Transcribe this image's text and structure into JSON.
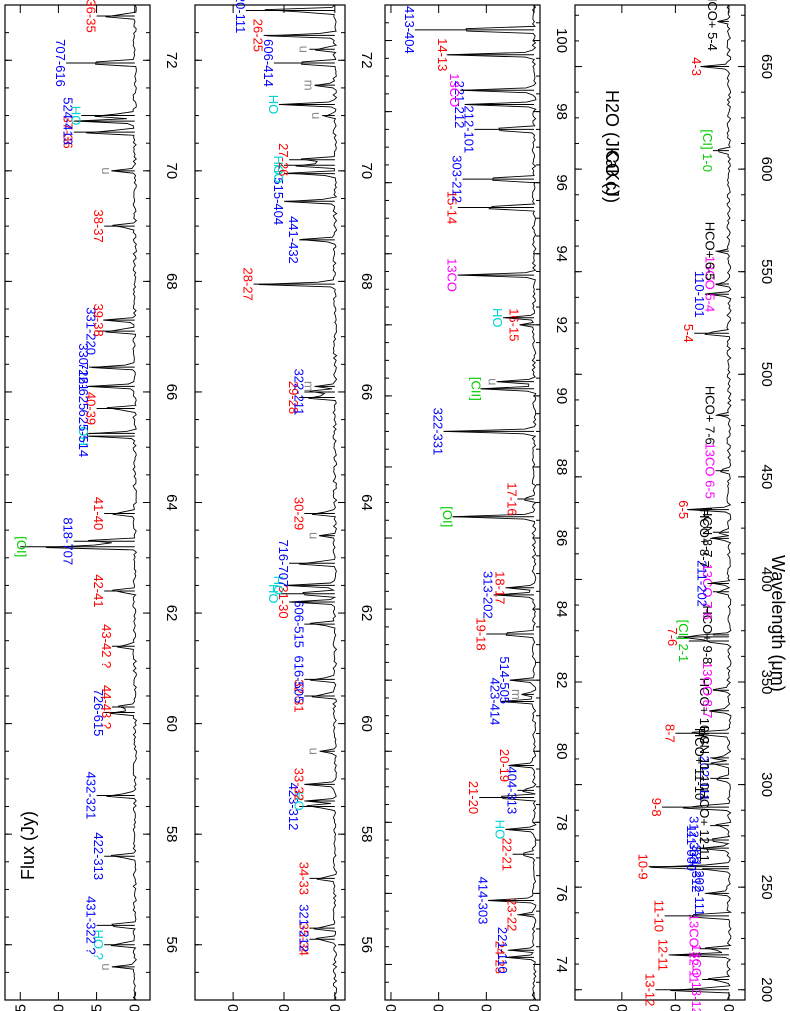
{
  "colors": {
    "CO": "#ff0000",
    "H2O": "#0000ff",
    "OH": "#00d4d4",
    "13CO": "#ff00ff",
    "CI": "#00cc00",
    "HCO": "#000000",
    "u": "#888888"
  },
  "axis_titles": {
    "flux": "Flux (Jy)",
    "wavelength": "Wavelength (μm)",
    "legend_co": "CO (J)",
    "legend_h2o": "H2O (JKaKc)"
  },
  "chart_data": [
    {
      "type": "line",
      "panel": 1,
      "xlim": [
        55,
        73
      ],
      "ylim": [
        -2,
        17
      ],
      "yticks": [
        0,
        5,
        10,
        15
      ],
      "xticks": [
        56,
        58,
        60,
        62,
        64,
        66,
        68,
        70,
        72
      ],
      "lines": [
        {
          "x": 55.6,
          "h": 3,
          "label": "u",
          "cls": "u"
        },
        {
          "x": 56.0,
          "h": 4,
          "label": "HO ?",
          "cls": "OH"
        },
        {
          "x": 56.35,
          "h": 5,
          "label": "431-322 ?",
          "cls": "H2O"
        },
        {
          "x": 57.6,
          "h": 4,
          "label": "422-313",
          "cls": "H2O"
        },
        {
          "x": 58.7,
          "h": 5,
          "label": "432-321",
          "cls": "H2O"
        },
        {
          "x": 60.2,
          "h": 4,
          "label": "726-615",
          "cls": "H2O"
        },
        {
          "x": 60.3,
          "h": 3,
          "label": "44-43 ?",
          "cls": "CO"
        },
        {
          "x": 61.4,
          "h": 3,
          "label": "43-42 ?",
          "cls": "CO"
        },
        {
          "x": 62.4,
          "h": 4,
          "label": "42-41",
          "cls": "CO"
        },
        {
          "x": 63.2,
          "h": 15,
          "label": "[OI]",
          "cls": "CI"
        },
        {
          "x": 63.3,
          "h": 8,
          "label": "818-707",
          "cls": "H2O"
        },
        {
          "x": 63.8,
          "h": 4,
          "label": "41-40",
          "cls": "CO"
        },
        {
          "x": 65.2,
          "h": 6,
          "label": "OH",
          "cls": "OH"
        },
        {
          "x": 65.25,
          "h": 6,
          "label": "625-514",
          "cls": "H2O"
        },
        {
          "x": 65.7,
          "h": 5,
          "label": "40-39",
          "cls": "CO"
        },
        {
          "x": 66.1,
          "h": 6,
          "label": "716-625",
          "cls": "H2O"
        },
        {
          "x": 66.45,
          "h": 6,
          "label": "330-221",
          "cls": "H2O"
        },
        {
          "x": 67.1,
          "h": 5,
          "label": "331-220",
          "cls": "H2O"
        },
        {
          "x": 67.3,
          "h": 4,
          "label": "39-38",
          "cls": "CO"
        },
        {
          "x": 69.0,
          "h": 4,
          "label": "38-37",
          "cls": "CO"
        },
        {
          "x": 70.0,
          "h": 3,
          "label": "u",
          "cls": "u"
        },
        {
          "x": 70.7,
          "h": 8,
          "label": "37-36",
          "cls": "CO"
        },
        {
          "x": 70.9,
          "h": 8,
          "label": "524-413",
          "cls": "H2O"
        },
        {
          "x": 71.0,
          "h": 7,
          "label": "HO",
          "cls": "OH"
        },
        {
          "x": 71.95,
          "h": 9,
          "label": "707-616",
          "cls": "H2O"
        },
        {
          "x": 72.8,
          "h": 5,
          "label": "36-35",
          "cls": "CO"
        }
      ]
    },
    {
      "type": "line",
      "panel": 2,
      "xlim": [
        55,
        73
      ],
      "ylim": [
        -4,
        55
      ],
      "yticks": [
        0,
        20,
        40
      ],
      "xticks": [
        56,
        58,
        60,
        62,
        64,
        66,
        68,
        70,
        72
      ],
      "lines": [
        {
          "x": 56.1,
          "h": 10,
          "label": "35-34",
          "cls": "CO"
        },
        {
          "x": 56.3,
          "h": 10,
          "label": "321-212",
          "cls": "H2O"
        },
        {
          "x": 57.2,
          "h": 10,
          "label": "34-33",
          "cls": "CO"
        },
        {
          "x": 58.5,
          "h": 14,
          "label": "423-312",
          "cls": "H2O"
        },
        {
          "x": 58.6,
          "h": 12,
          "label": "HO",
          "cls": "OH"
        },
        {
          "x": 58.9,
          "h": 12,
          "label": "33-32",
          "cls": "CO"
        },
        {
          "x": 59.5,
          "h": 6,
          "label": "u",
          "cls": "u"
        },
        {
          "x": 60.5,
          "h": 12,
          "label": "32-31",
          "cls": "CO"
        },
        {
          "x": 60.8,
          "h": 12,
          "label": "616-505",
          "cls": "H2O"
        },
        {
          "x": 61.8,
          "h": 12,
          "label": "606-515",
          "cls": "H2O"
        },
        {
          "x": 62.2,
          "h": 18,
          "label": "31-30",
          "cls": "CO"
        },
        {
          "x": 62.35,
          "h": 22,
          "label": "HO",
          "cls": "OH"
        },
        {
          "x": 62.5,
          "h": 20,
          "label": "HO",
          "cls": "OH"
        },
        {
          "x": 62.9,
          "h": 18,
          "label": "716-707",
          "cls": "H2O"
        },
        {
          "x": 63.4,
          "h": 6,
          "label": "u",
          "cls": "u"
        },
        {
          "x": 63.8,
          "h": 12,
          "label": "30-29",
          "cls": "CO"
        },
        {
          "x": 65.9,
          "h": 14,
          "label": "29-28",
          "cls": "CO"
        },
        {
          "x": 66.0,
          "h": 12,
          "label": "322-211",
          "cls": "H2O"
        },
        {
          "x": 66.1,
          "h": 8,
          "label": "m",
          "cls": "u"
        },
        {
          "x": 67.95,
          "h": 32,
          "label": "28-27",
          "cls": "CO"
        },
        {
          "x": 68.75,
          "h": 14,
          "label": "441-432",
          "cls": "H2O"
        },
        {
          "x": 69.45,
          "h": 20,
          "label": "515-404",
          "cls": "H2O"
        },
        {
          "x": 69.95,
          "h": 20,
          "label": "HO",
          "cls": "OH"
        },
        {
          "x": 70.1,
          "h": 20,
          "label": "HO",
          "cls": "OH"
        },
        {
          "x": 70.2,
          "h": 18,
          "label": "27-26",
          "cls": "CO"
        },
        {
          "x": 71.0,
          "h": 5,
          "label": "u",
          "cls": "u"
        },
        {
          "x": 71.2,
          "h": 22,
          "label": "HO",
          "cls": "OH"
        },
        {
          "x": 71.55,
          "h": 8,
          "label": "m",
          "cls": "u"
        },
        {
          "x": 71.95,
          "h": 24,
          "label": "606-414",
          "cls": "H2O"
        },
        {
          "x": 72.2,
          "h": 10,
          "label": "u",
          "cls": "u"
        },
        {
          "x": 72.45,
          "h": 28,
          "label": "26-25",
          "cls": "CO"
        },
        {
          "x": 72.9,
          "h": 35,
          "label": "220-111",
          "cls": "H2O"
        }
      ]
    },
    {
      "type": "line",
      "panel": 3,
      "xlim": [
        73,
        101
      ],
      "ylim": [
        -5,
        125
      ],
      "yticks": [
        0,
        40,
        80,
        120
      ],
      "xticks": [
        74,
        76,
        78,
        80,
        82,
        84,
        86,
        88,
        90,
        92,
        94,
        96,
        98,
        100
      ],
      "lines": [
        {
          "x": 74.2,
          "h": 24,
          "label": "24-23",
          "cls": "CO"
        },
        {
          "x": 74.4,
          "h": 22,
          "label": "221-110",
          "cls": "H2O"
        },
        {
          "x": 75.4,
          "h": 14,
          "label": "23-22",
          "cls": "CO"
        },
        {
          "x": 75.8,
          "h": 38,
          "label": "414-303",
          "cls": "H2O"
        },
        {
          "x": 77.1,
          "h": 18,
          "label": "22-21",
          "cls": "CO"
        },
        {
          "x": 77.8,
          "h": 24,
          "label": "HO",
          "cls": "OH"
        },
        {
          "x": 78.7,
          "h": 46,
          "label": "21-20",
          "cls": "CO"
        },
        {
          "x": 78.9,
          "h": 14,
          "label": "404-313",
          "cls": "H2O"
        },
        {
          "x": 79.6,
          "h": 20,
          "label": "20-19",
          "cls": "CO"
        },
        {
          "x": 81.4,
          "h": 28,
          "label": "423-414",
          "cls": "H2O"
        },
        {
          "x": 81.6,
          "h": 10,
          "label": "m",
          "cls": "u"
        },
        {
          "x": 82.0,
          "h": 20,
          "label": "514-505",
          "cls": "H2O"
        },
        {
          "x": 83.3,
          "h": 40,
          "label": "19-18",
          "cls": "CO"
        },
        {
          "x": 84.4,
          "h": 34,
          "label": "313-202",
          "cls": "H2O"
        },
        {
          "x": 84.6,
          "h": 24,
          "label": "18-17",
          "cls": "CO"
        },
        {
          "x": 86.6,
          "h": 68,
          "label": "[OI]",
          "cls": "CI"
        },
        {
          "x": 87.1,
          "h": 14,
          "label": "17-16",
          "cls": "CO"
        },
        {
          "x": 89.0,
          "h": 76,
          "label": "322-331",
          "cls": "H2O"
        },
        {
          "x": 90.2,
          "h": 44,
          "label": "[CII]",
          "cls": "CI"
        },
        {
          "x": 90.4,
          "h": 30,
          "label": "u",
          "cls": "u"
        },
        {
          "x": 92.0,
          "h": 12,
          "label": "16-15",
          "cls": "CO"
        },
        {
          "x": 92.2,
          "h": 26,
          "label": "HO",
          "cls": "OH"
        },
        {
          "x": 93.4,
          "h": 64,
          "label": "13CO",
          "cls": "13CO"
        },
        {
          "x": 95.3,
          "h": 64,
          "label": "15-14",
          "cls": "CO"
        },
        {
          "x": 96.1,
          "h": 60,
          "label": "303-212",
          "cls": "H2O"
        },
        {
          "x": 97.5,
          "h": 50,
          "label": "212-101",
          "cls": "H2O"
        },
        {
          "x": 98.2,
          "h": 58,
          "label": "221-212",
          "cls": "H2O"
        },
        {
          "x": 98.6,
          "h": 62,
          "label": "13CO",
          "cls": "13CO"
        },
        {
          "x": 99.6,
          "h": 72,
          "label": "14-13",
          "cls": "CO"
        },
        {
          "x": 100.3,
          "h": 100,
          "label": "413-404",
          "cls": "H2O"
        }
      ]
    },
    {
      "type": "line",
      "panel": 4,
      "xlim": [
        195,
        680
      ],
      "ylim": [
        -12,
        115
      ],
      "yticks": [
        0,
        40,
        80
      ],
      "xticks": [
        200,
        250,
        300,
        350,
        400,
        450,
        500,
        550,
        600,
        650
      ],
      "lines": [
        {
          "x": 200,
          "h": 55,
          "label": "13-12",
          "cls": "CO"
        },
        {
          "x": 205,
          "h": 20,
          "label": "13CO 13-12",
          "cls": "13CO"
        },
        {
          "x": 217,
          "h": 45,
          "label": "12-11",
          "cls": "CO"
        },
        {
          "x": 220,
          "h": 22,
          "label": "13CO 12-11",
          "cls": "13CO"
        },
        {
          "x": 236,
          "h": 48,
          "label": "11-10",
          "cls": "CO"
        },
        {
          "x": 247,
          "h": 18,
          "label": "202-111",
          "cls": "H2O"
        },
        {
          "x": 259,
          "h": 20,
          "label": "321-312",
          "cls": "H2O"
        },
        {
          "x": 260,
          "h": 60,
          "label": "10-9",
          "cls": "CO"
        },
        {
          "x": 269,
          "h": 24,
          "label": "111-000",
          "cls": "H2O"
        },
        {
          "x": 273,
          "h": 22,
          "label": "312-303",
          "cls": "H2O"
        },
        {
          "x": 280,
          "h": 14,
          "label": "HCO+ 12-11",
          "cls": "HCO"
        },
        {
          "x": 289,
          "h": 50,
          "label": "9-8",
          "cls": "CO"
        },
        {
          "x": 303,
          "h": 14,
          "label": "202-111",
          "cls": "H2O"
        },
        {
          "x": 310,
          "h": 18,
          "label": "HCO+ 11-10",
          "cls": "HCO"
        },
        {
          "x": 313,
          "h": 14,
          "label": "HCN 11-10",
          "cls": "HCO"
        },
        {
          "x": 325,
          "h": 40,
          "label": "8-7",
          "cls": "CO"
        },
        {
          "x": 336,
          "h": 14,
          "label": "HCO+ 10-9",
          "cls": "HCO"
        },
        {
          "x": 346,
          "h": 12,
          "label": "13CO 8-7",
          "cls": "13CO"
        },
        {
          "x": 370,
          "h": 30,
          "label": "[CI] 2-1",
          "cls": "CI"
        },
        {
          "x": 372,
          "h": 38,
          "label": "7-6",
          "cls": "CO"
        },
        {
          "x": 373,
          "h": 12,
          "label": "HCO+ 9-8",
          "cls": "HCO"
        },
        {
          "x": 394,
          "h": 12,
          "label": "13CO 7-6",
          "cls": "13CO"
        },
        {
          "x": 398,
          "h": 16,
          "label": "211-202",
          "cls": "H2O"
        },
        {
          "x": 420,
          "h": 14,
          "label": "HCO+ 8-7",
          "cls": "HCO"
        },
        {
          "x": 423,
          "h": 12,
          "label": "HCN 8-7",
          "cls": "HCO"
        },
        {
          "x": 434,
          "h": 30,
          "label": "6-5",
          "cls": "CO"
        },
        {
          "x": 453,
          "h": 10,
          "label": "13CO 6-5",
          "cls": "13CO"
        },
        {
          "x": 480,
          "h": 10,
          "label": "HCO+ 7-6",
          "cls": "HCO"
        },
        {
          "x": 520,
          "h": 26,
          "label": "5-4",
          "cls": "CO"
        },
        {
          "x": 539,
          "h": 18,
          "label": "110-101",
          "cls": "H2O"
        },
        {
          "x": 544,
          "h": 10,
          "label": "13CO 5-4",
          "cls": "13CO"
        },
        {
          "x": 560,
          "h": 10,
          "label": "HCO+ 6-5",
          "cls": "HCO"
        },
        {
          "x": 609,
          "h": 12,
          "label": "[CI] 1-0",
          "cls": "CI"
        },
        {
          "x": 650,
          "h": 20,
          "label": "4-3",
          "cls": "CO"
        },
        {
          "x": 672,
          "h": 8,
          "label": "HCO+ 5-4",
          "cls": "HCO"
        }
      ]
    }
  ]
}
